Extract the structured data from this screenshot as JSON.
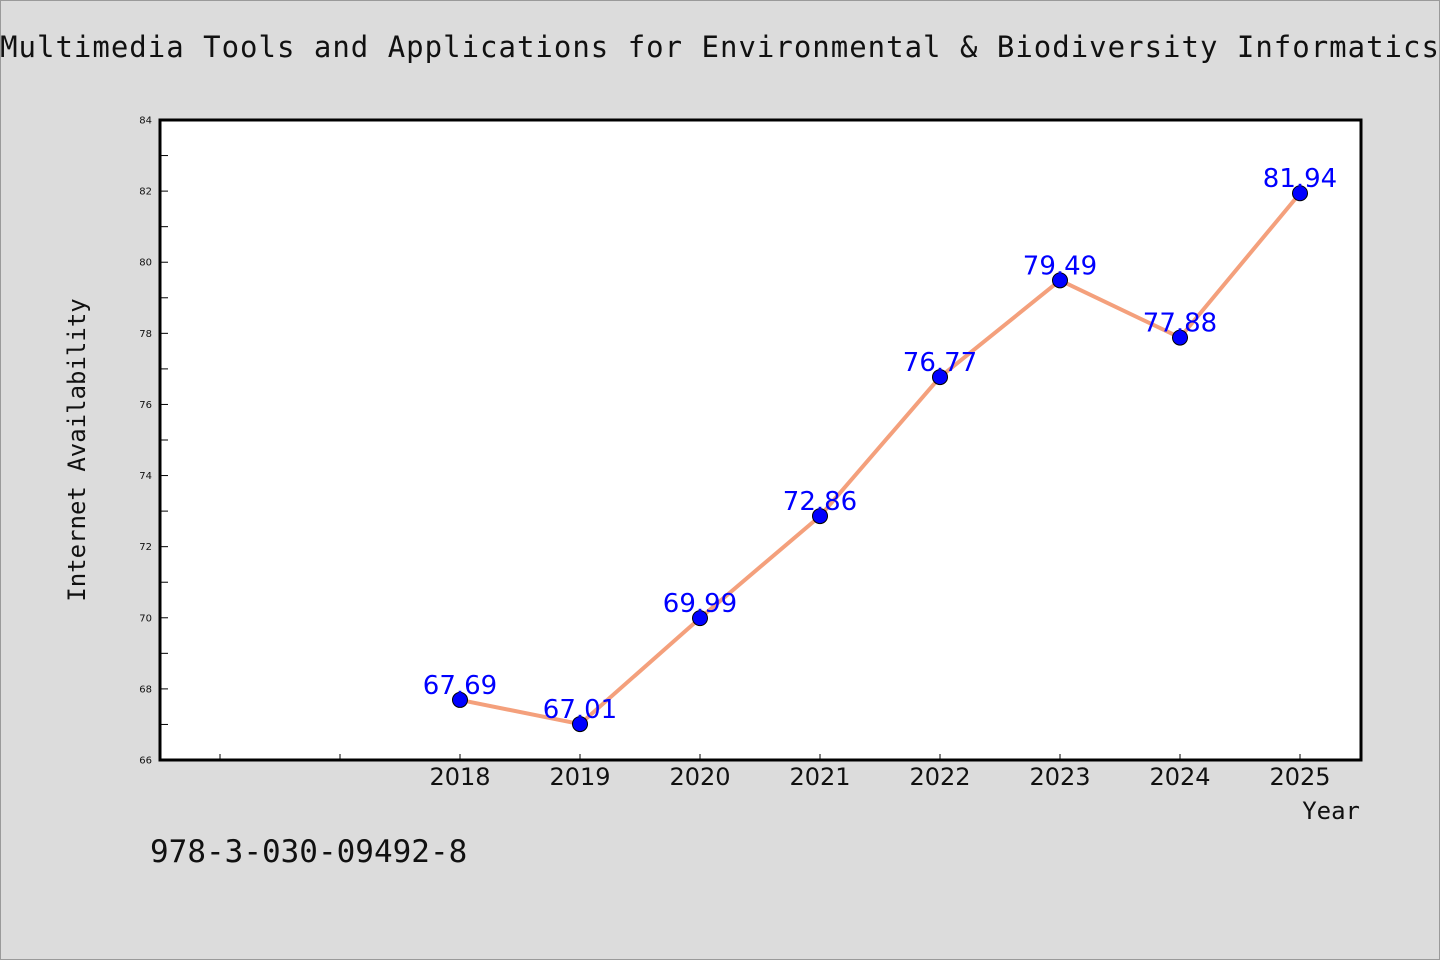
{
  "chart_data": {
    "type": "line",
    "title": "Multimedia Tools and Applications for Environmental & Biodiversity Informatics",
    "xlabel": "Year",
    "ylabel": "Internet Availability",
    "x": [
      "2018",
      "2019",
      "2020",
      "2021",
      "2022",
      "2023",
      "2024",
      "2025"
    ],
    "series": [
      {
        "values": [
          67.69,
          67.01,
          69.99,
          72.86,
          76.77,
          79.49,
          77.88,
          81.94
        ],
        "line_color": "#f4a07c",
        "marker_color": "#0000ff"
      }
    ],
    "data_labels": [
      "67.69",
      "67.01",
      "69.99",
      "72.86",
      "76.77",
      "79.49",
      "77.88",
      "81.94"
    ],
    "ylim": [
      66,
      84
    ],
    "yticks": [
      "66",
      "68",
      "70",
      "72",
      "74",
      "76",
      "78",
      "80",
      "82",
      "84"
    ],
    "grid": false,
    "legend": "none"
  },
  "footer": {
    "isbn": "978-3-030-09492-8"
  }
}
